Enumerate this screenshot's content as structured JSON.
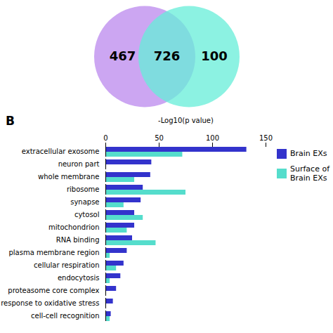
{
  "chart_data": [
    {
      "type": "venn",
      "values": [
        467,
        726,
        100
      ],
      "colors": [
        "#BB88EE",
        "#66EED8"
      ]
    },
    {
      "type": "bar",
      "title": "B",
      "orientation": "horizontal",
      "categories": [
        "extracellular exosome",
        "neuron part",
        "whole membrane",
        "ribosome",
        "synapse",
        "cytosol",
        "mitochondrion",
        "RNA binding",
        "plasma membrane region",
        "cellular respiration",
        "endocytosis",
        "proteasome core complex",
        "response to oxidative stress",
        "cell-cell recognition"
      ],
      "series": [
        {
          "name": "Brain EXs",
          "color": "#3333CC",
          "values": [
            132,
            43,
            42,
            35,
            33,
            27,
            27,
            25,
            20,
            17,
            14,
            10,
            7,
            5
          ]
        },
        {
          "name": "Surface of\nBrain EXs",
          "color": "#55DDCC",
          "values": [
            72,
            0,
            27,
            75,
            17,
            35,
            20,
            47,
            4,
            10,
            4,
            0,
            0,
            4
          ]
        }
      ],
      "xlabel": "-Log10(p value)",
      "xlim": [
        0,
        150
      ],
      "xticks": [
        0,
        50,
        100,
        150
      ],
      "grid": false,
      "legend": "upper right"
    }
  ]
}
